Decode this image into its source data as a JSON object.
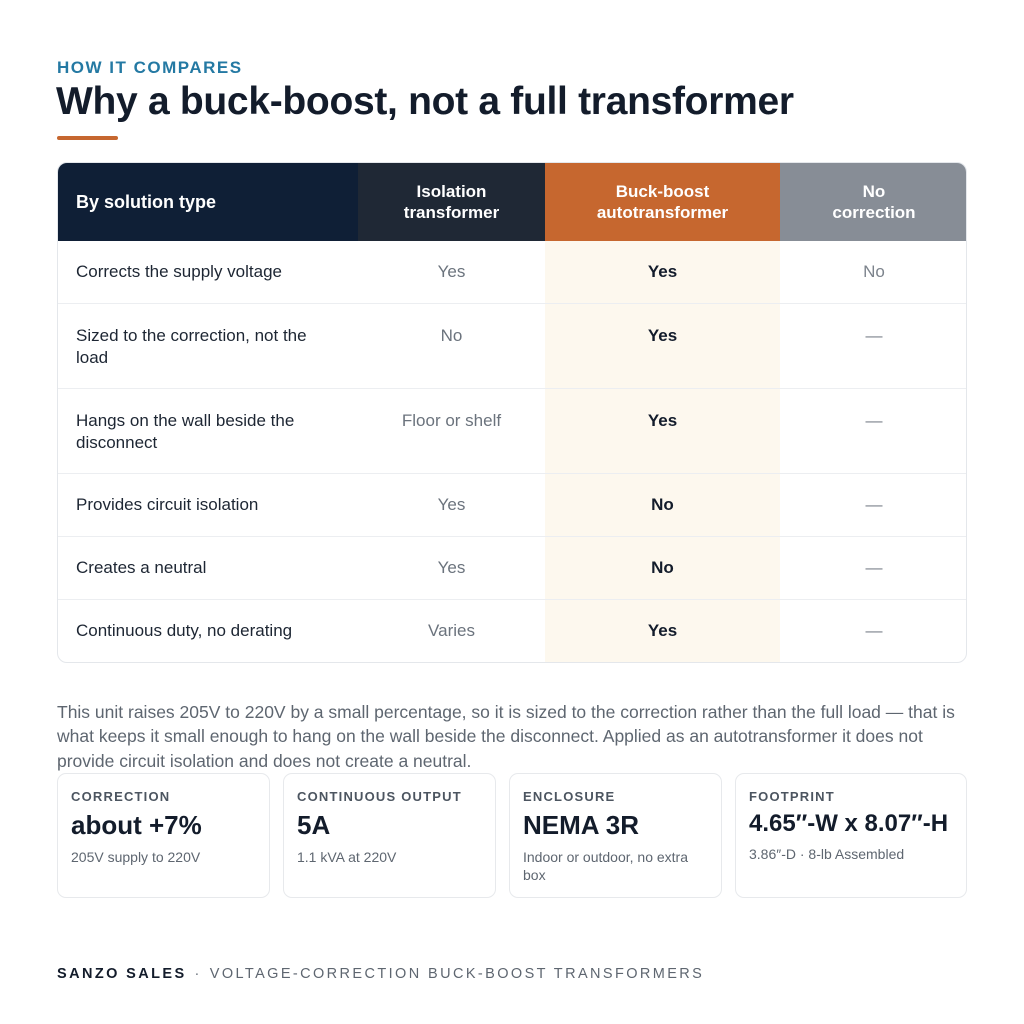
{
  "header": {
    "eyebrow": "HOW IT COMPARES",
    "title": "Why a buck-boost, not a full transformer"
  },
  "table": {
    "headers": {
      "label": "By solution type",
      "col1": "Isolation transformer",
      "col2": "Buck-boost autotransformer",
      "col3": "No correction"
    },
    "rows": [
      {
        "label": "Corrects the supply voltage",
        "col1": "Yes",
        "col2": "Yes",
        "col3": "No"
      },
      {
        "label": "Sized to the correction, not the load",
        "col1": "No",
        "col2": "Yes",
        "col3": "—"
      },
      {
        "label": "Hangs on the wall beside the disconnect",
        "col1": "Floor or shelf",
        "col2": "Yes",
        "col3": "—"
      },
      {
        "label": "Provides circuit isolation",
        "col1": "Yes",
        "col2": "No",
        "col3": "—"
      },
      {
        "label": "Creates a neutral",
        "col1": "Yes",
        "col2": "No",
        "col3": "—"
      },
      {
        "label": "Continuous duty, no derating",
        "col1": "Varies",
        "col2": "Yes",
        "col3": "—"
      }
    ]
  },
  "note": "This unit raises 205V to 220V by a small percentage, so it is sized to the correction rather than the full load — that is what keeps it small enough to hang on the wall beside the disconnect. Applied as an autotransformer it does not provide circuit isolation and does not create a neutral.",
  "cards": [
    {
      "key": "CORRECTION",
      "value": "about +7%",
      "sub": "205V supply to 220V"
    },
    {
      "key": "CONTINUOUS OUTPUT",
      "value": "5A",
      "sub": "1.1 kVA at 220V"
    },
    {
      "key": "ENCLOSURE",
      "value": "NEMA 3R",
      "sub": "Indoor or outdoor, no extra box"
    },
    {
      "key": "FOOTPRINT",
      "value": "4.65″-W x 8.07″-H",
      "sub": "3.86″-D · 8-lb Assembled"
    }
  ],
  "footer": {
    "brand": "SANZO SALES",
    "separator": "·",
    "tagline": "VOLTAGE-CORRECTION BUCK-BOOST TRANSFORMERS"
  },
  "colors": {
    "accent": "#c6672f",
    "navy": "#0f1f36",
    "eyebrow": "#2479a3",
    "highlight_column": "#fdf8ee"
  }
}
